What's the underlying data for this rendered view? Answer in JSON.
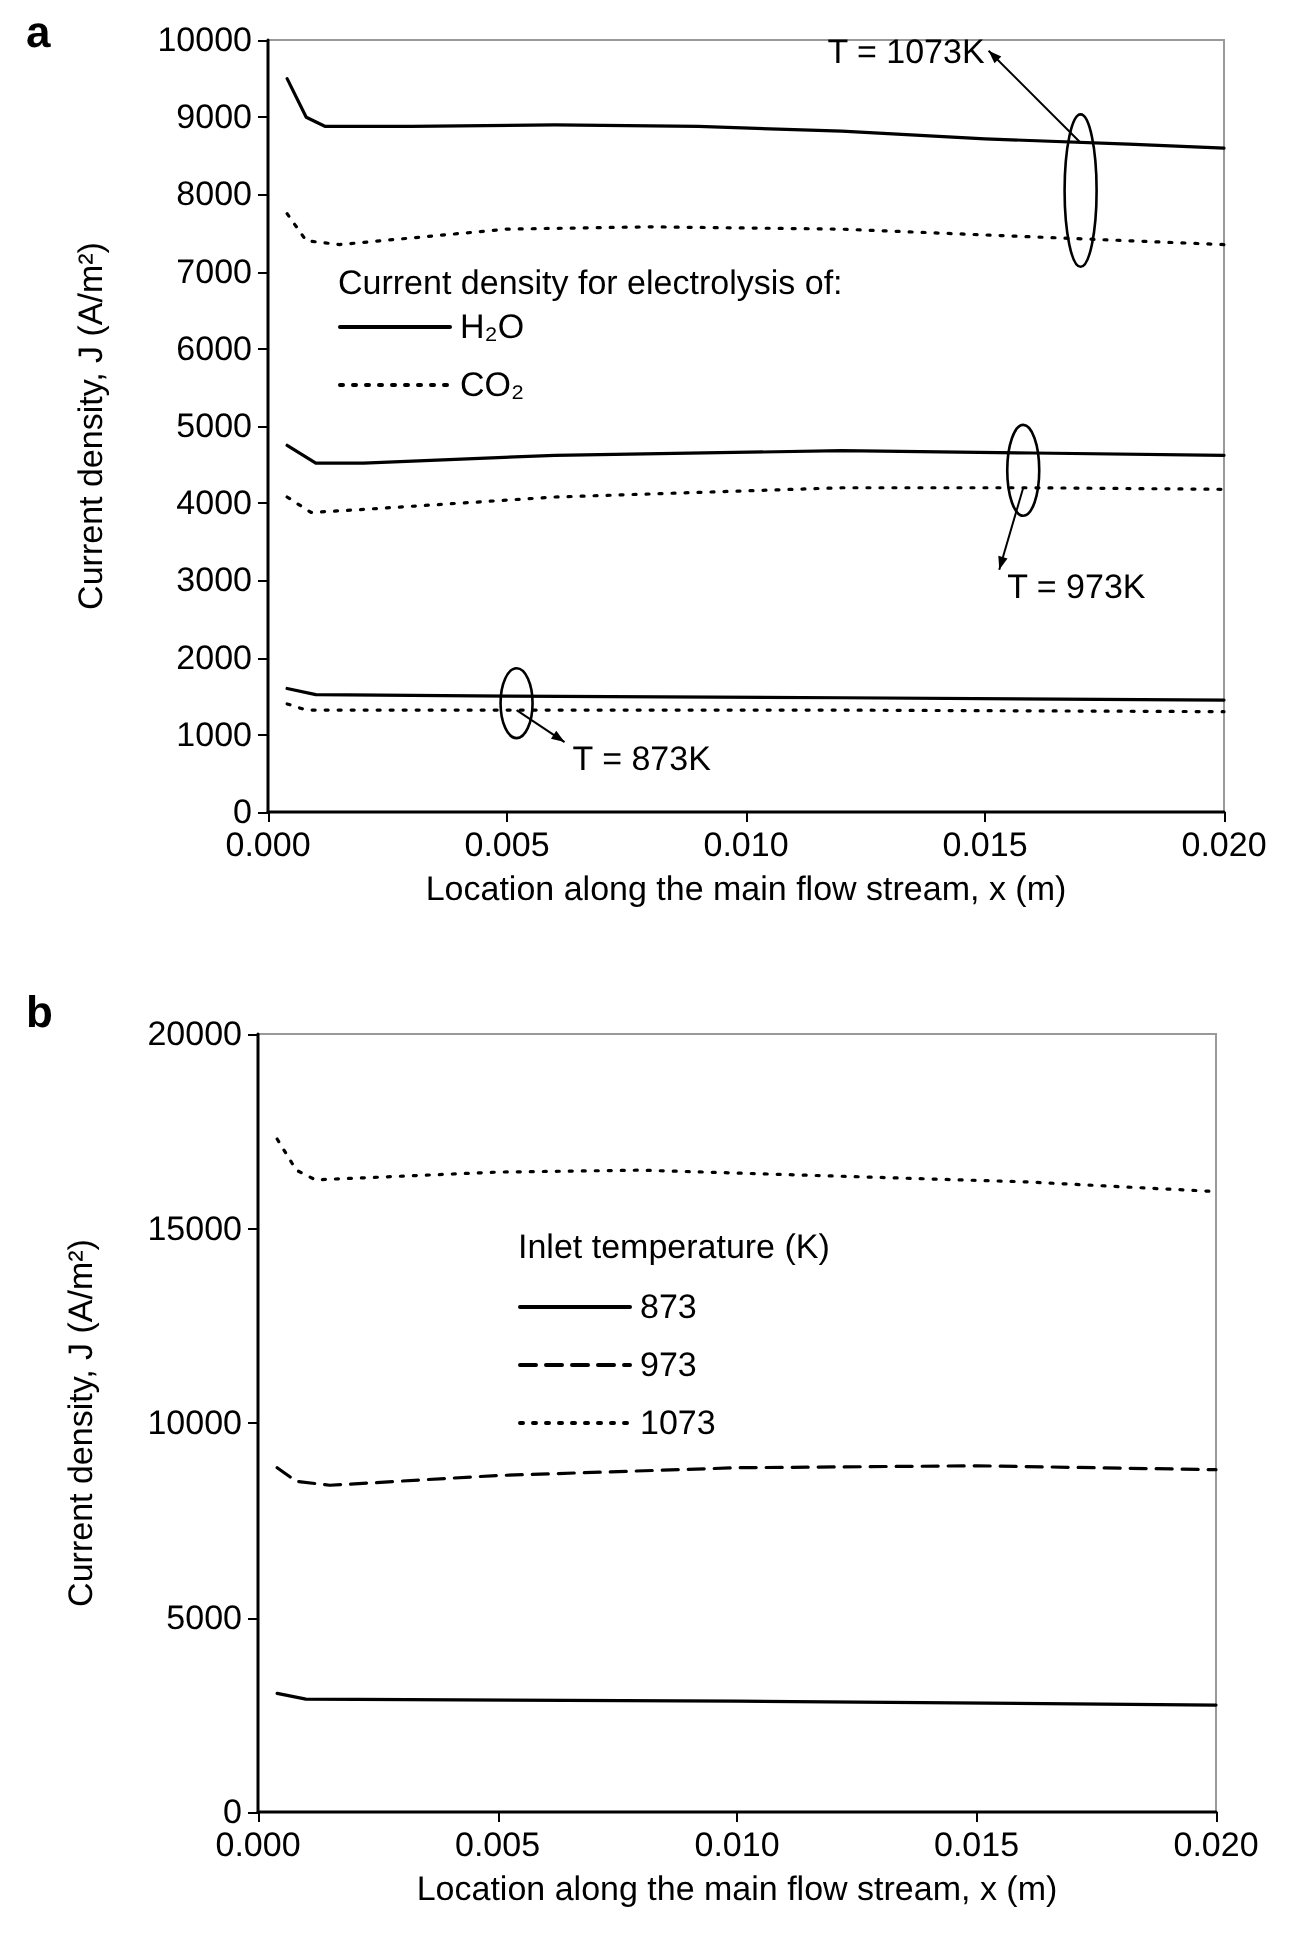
{
  "chart_data": [
    {
      "type": "line",
      "title": "a",
      "xlabel": "Location along the main flow stream, x (m)",
      "ylabel": "Current density, J (A/m²)",
      "legend_title": "Current density for electrolysis of:",
      "legend": "left",
      "grid": false,
      "marker": "none",
      "xlim": [
        0,
        0.02
      ],
      "xticks": [
        {
          "value": 0,
          "label": "0.000"
        },
        {
          "value": 0.005,
          "label": "0.005"
        },
        {
          "value": 0.01,
          "label": "0.010"
        },
        {
          "value": 0.015,
          "label": "0.015"
        },
        {
          "value": 0.02,
          "label": "0.020"
        }
      ],
      "ylim": [
        0,
        10000
      ],
      "yticks": [
        0,
        1000,
        2000,
        3000,
        4000,
        5000,
        6000,
        7000,
        8000,
        9000,
        10000
      ],
      "series": [
        {
          "name": "H₂O",
          "color": "#000000",
          "line_style": "solid",
          "x": [
            0.0004,
            0.0008,
            0.0012,
            0.003,
            0.006,
            0.009,
            0.012,
            0.015,
            0.018,
            0.02
          ],
          "values": [
            9500,
            9000,
            8880,
            8880,
            8900,
            8880,
            8820,
            8720,
            8650,
            8600
          ]
        },
        {
          "name": "CO₂",
          "color": "#000000",
          "line_style": "dotted",
          "x": [
            0.0004,
            0.0008,
            0.0015,
            0.005,
            0.008,
            0.012,
            0.016,
            0.02
          ],
          "values": [
            7750,
            7400,
            7350,
            7550,
            7580,
            7550,
            7450,
            7350
          ]
        },
        {
          "color": "#000000",
          "line_style": "solid",
          "x": [
            0.0004,
            0.001,
            0.002,
            0.006,
            0.012,
            0.016,
            0.02
          ],
          "values": [
            4750,
            4520,
            4520,
            4620,
            4680,
            4650,
            4620
          ]
        },
        {
          "color": "#000000",
          "line_style": "dotted",
          "x": [
            0.0004,
            0.0009,
            0.002,
            0.006,
            0.012,
            0.016,
            0.02
          ],
          "values": [
            4080,
            3880,
            3920,
            4080,
            4200,
            4200,
            4180
          ]
        },
        {
          "color": "#000000",
          "line_style": "solid",
          "x": [
            0.0004,
            0.001,
            0.005,
            0.012,
            0.02
          ],
          "values": [
            1600,
            1520,
            1500,
            1480,
            1450
          ]
        },
        {
          "color": "#000000",
          "line_style": "dotted",
          "x": [
            0.0004,
            0.0008,
            0.005,
            0.012,
            0.02
          ],
          "values": [
            1400,
            1320,
            1320,
            1320,
            1300
          ]
        }
      ],
      "annotations": [
        {
          "text": "T = 1073K",
          "x": 0.017,
          "y": 8670
        },
        {
          "text": "T = 973K",
          "x": 0.0158,
          "y": 4200
        },
        {
          "text": "T = 873K",
          "x": 0.0052,
          "y": 1320
        }
      ]
    },
    {
      "type": "line",
      "title": "b",
      "xlabel": "Location along the main flow stream, x (m)",
      "ylabel": "Current density, J (A/m²)",
      "legend_title": "Inlet temperature (K)",
      "legend": "top",
      "grid": false,
      "marker": "none",
      "xlim": [
        0,
        0.02
      ],
      "xticks": [
        {
          "value": 0,
          "label": "0.000"
        },
        {
          "value": 0.005,
          "label": "0.005"
        },
        {
          "value": 0.01,
          "label": "0.010"
        },
        {
          "value": 0.015,
          "label": "0.015"
        },
        {
          "value": 0.02,
          "label": "0.020"
        }
      ],
      "ylim": [
        0,
        20000
      ],
      "yticks": [
        0,
        5000,
        10000,
        15000,
        20000
      ],
      "series": [
        {
          "name": "873",
          "color": "#000000",
          "line_style": "solid",
          "x": [
            0.0004,
            0.001,
            0.01,
            0.02
          ],
          "values": [
            3050,
            2900,
            2850,
            2750
          ]
        },
        {
          "name": "973",
          "color": "#000000",
          "line_style": "dashed",
          "x": [
            0.0004,
            0.0008,
            0.0015,
            0.005,
            0.01,
            0.015,
            0.02
          ],
          "values": [
            8850,
            8500,
            8400,
            8650,
            8850,
            8900,
            8800
          ]
        },
        {
          "name": "1073",
          "color": "#000000",
          "line_style": "dotted",
          "x": [
            0.0004,
            0.0008,
            0.0012,
            0.005,
            0.008,
            0.012,
            0.016,
            0.02
          ],
          "values": [
            17300,
            16500,
            16250,
            16450,
            16500,
            16350,
            16200,
            15950
          ]
        }
      ]
    }
  ]
}
